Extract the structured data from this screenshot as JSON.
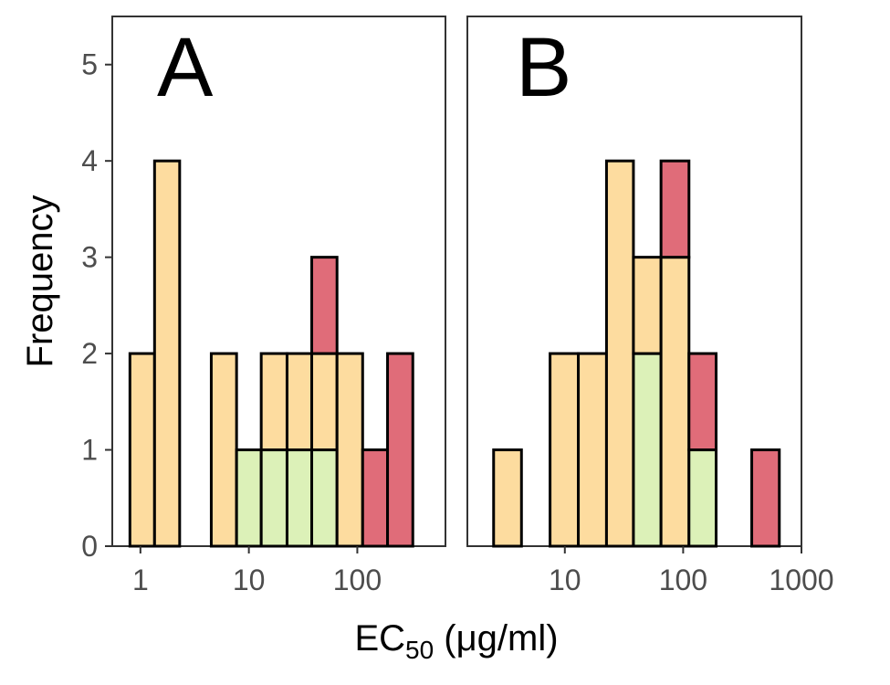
{
  "chart_data": {
    "type": "bar",
    "subtype": "stacked-histogram-faceted",
    "y_label": "Frequency",
    "x_label_main": "EC",
    "x_label_sub": "50",
    "x_label_units": " (μg/ml)",
    "x_scale": "log10",
    "ylim": [
      0,
      5.5
    ],
    "y_ticks": [
      0,
      1,
      2,
      3,
      4,
      5
    ],
    "grid": false,
    "legend": "none",
    "colors": {
      "green": "#dcf1b8",
      "orange": "#fddc9f",
      "red": "#e06c79",
      "stroke": "#000000",
      "panel_border": "#333333",
      "tick_text": "#4d4d4d"
    },
    "panels": [
      {
        "tag": "A",
        "xlim": [
          0.55,
          650
        ],
        "x_ticks": [
          {
            "value": 1,
            "label": "1"
          },
          {
            "value": 10,
            "label": "10"
          },
          {
            "value": 100,
            "label": "100"
          }
        ],
        "bins": [
          {
            "from": 0.8,
            "to": 1.35,
            "green": 0,
            "orange": 2,
            "red": 0
          },
          {
            "from": 1.35,
            "to": 2.3,
            "green": 0,
            "orange": 4,
            "red": 0
          },
          {
            "from": 4.5,
            "to": 7.7,
            "green": 0,
            "orange": 2,
            "red": 0
          },
          {
            "from": 7.7,
            "to": 13.0,
            "green": 1,
            "orange": 0,
            "red": 0
          },
          {
            "from": 13.0,
            "to": 22.5,
            "green": 1,
            "orange": 1,
            "red": 0
          },
          {
            "from": 22.5,
            "to": 38.0,
            "green": 1,
            "orange": 1,
            "red": 0
          },
          {
            "from": 38.0,
            "to": 65.0,
            "green": 1,
            "orange": 1,
            "red": 1
          },
          {
            "from": 65.0,
            "to": 112,
            "green": 0,
            "orange": 2,
            "red": 0
          },
          {
            "from": 112,
            "to": 190,
            "green": 0,
            "orange": 0,
            "red": 1
          },
          {
            "from": 190,
            "to": 325,
            "green": 0,
            "orange": 0,
            "red": 2
          }
        ]
      },
      {
        "tag": "B",
        "xlim": [
          1.5,
          1000
        ],
        "x_ticks": [
          {
            "value": 10,
            "label": "10"
          },
          {
            "value": 100,
            "label": "100"
          },
          {
            "value": 1000,
            "label": "1000"
          }
        ],
        "bins": [
          {
            "from": 2.5,
            "to": 4.3,
            "green": 0,
            "orange": 1,
            "red": 0
          },
          {
            "from": 7.5,
            "to": 13.0,
            "green": 0,
            "orange": 2,
            "red": 0
          },
          {
            "from": 13.0,
            "to": 22.5,
            "green": 0,
            "orange": 2,
            "red": 0
          },
          {
            "from": 22.5,
            "to": 38.0,
            "green": 0,
            "orange": 4,
            "red": 0
          },
          {
            "from": 38.0,
            "to": 65.0,
            "green": 2,
            "orange": 1,
            "red": 0
          },
          {
            "from": 65.0,
            "to": 112,
            "green": 0,
            "orange": 3,
            "red": 1
          },
          {
            "from": 112,
            "to": 190,
            "green": 1,
            "orange": 0,
            "red": 1
          },
          {
            "from": 380,
            "to": 650,
            "green": 0,
            "orange": 0,
            "red": 1
          }
        ]
      }
    ]
  }
}
